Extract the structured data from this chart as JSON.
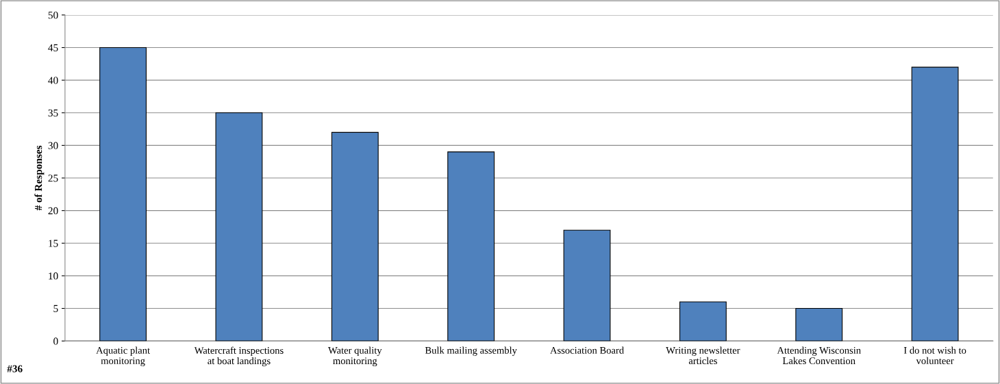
{
  "chart_data": {
    "type": "bar",
    "ylabel": "# of Responses",
    "categories": [
      "Aquatic plant\nmonitoring",
      "Watercraft inspections\nat boat landings",
      "Water quality\nmonitoring",
      "Bulk mailing assembly",
      "Association Board",
      "Writing newsletter\narticles",
      "Attending Wisconsin\nLakes Convention",
      "I do not wish to\nvolunteer"
    ],
    "values": [
      45,
      35,
      32,
      29,
      17,
      6,
      5,
      42
    ],
    "color": "#4f81bd",
    "ylim": [
      0,
      50
    ],
    "yticks": [
      0,
      5,
      10,
      15,
      20,
      25,
      30,
      35,
      40,
      45,
      50
    ],
    "grid": "y",
    "annotations": [
      "#36"
    ]
  }
}
